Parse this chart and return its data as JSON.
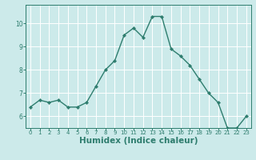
{
  "x": [
    0,
    1,
    2,
    3,
    4,
    5,
    6,
    7,
    8,
    9,
    10,
    11,
    12,
    13,
    14,
    15,
    16,
    17,
    18,
    19,
    20,
    21,
    22,
    23
  ],
  "y": [
    6.4,
    6.7,
    6.6,
    6.7,
    6.4,
    6.4,
    6.6,
    7.3,
    8.0,
    8.4,
    9.5,
    9.8,
    9.4,
    10.3,
    10.3,
    8.9,
    8.6,
    8.2,
    7.6,
    7.0,
    6.6,
    5.5,
    5.5,
    6.0
  ],
  "line_color": "#2e7d6e",
  "marker": "D",
  "marker_size": 2.2,
  "line_width": 1.0,
  "bg_color": "#cceaea",
  "grid_color": "#ffffff",
  "tick_color": "#2e7d6e",
  "xlabel": "Humidex (Indice chaleur)",
  "xlabel_fontsize": 7.5,
  "xlabel_color": "#2e7d6e",
  "xlim": [
    -0.5,
    23.5
  ],
  "ylim": [
    5.5,
    10.8
  ],
  "yticks": [
    6,
    7,
    8,
    9,
    10
  ],
  "xticks": [
    0,
    1,
    2,
    3,
    4,
    5,
    6,
    7,
    8,
    9,
    10,
    11,
    12,
    13,
    14,
    15,
    16,
    17,
    18,
    19,
    20,
    21,
    22,
    23
  ],
  "spine_color": "#2e7d6e"
}
